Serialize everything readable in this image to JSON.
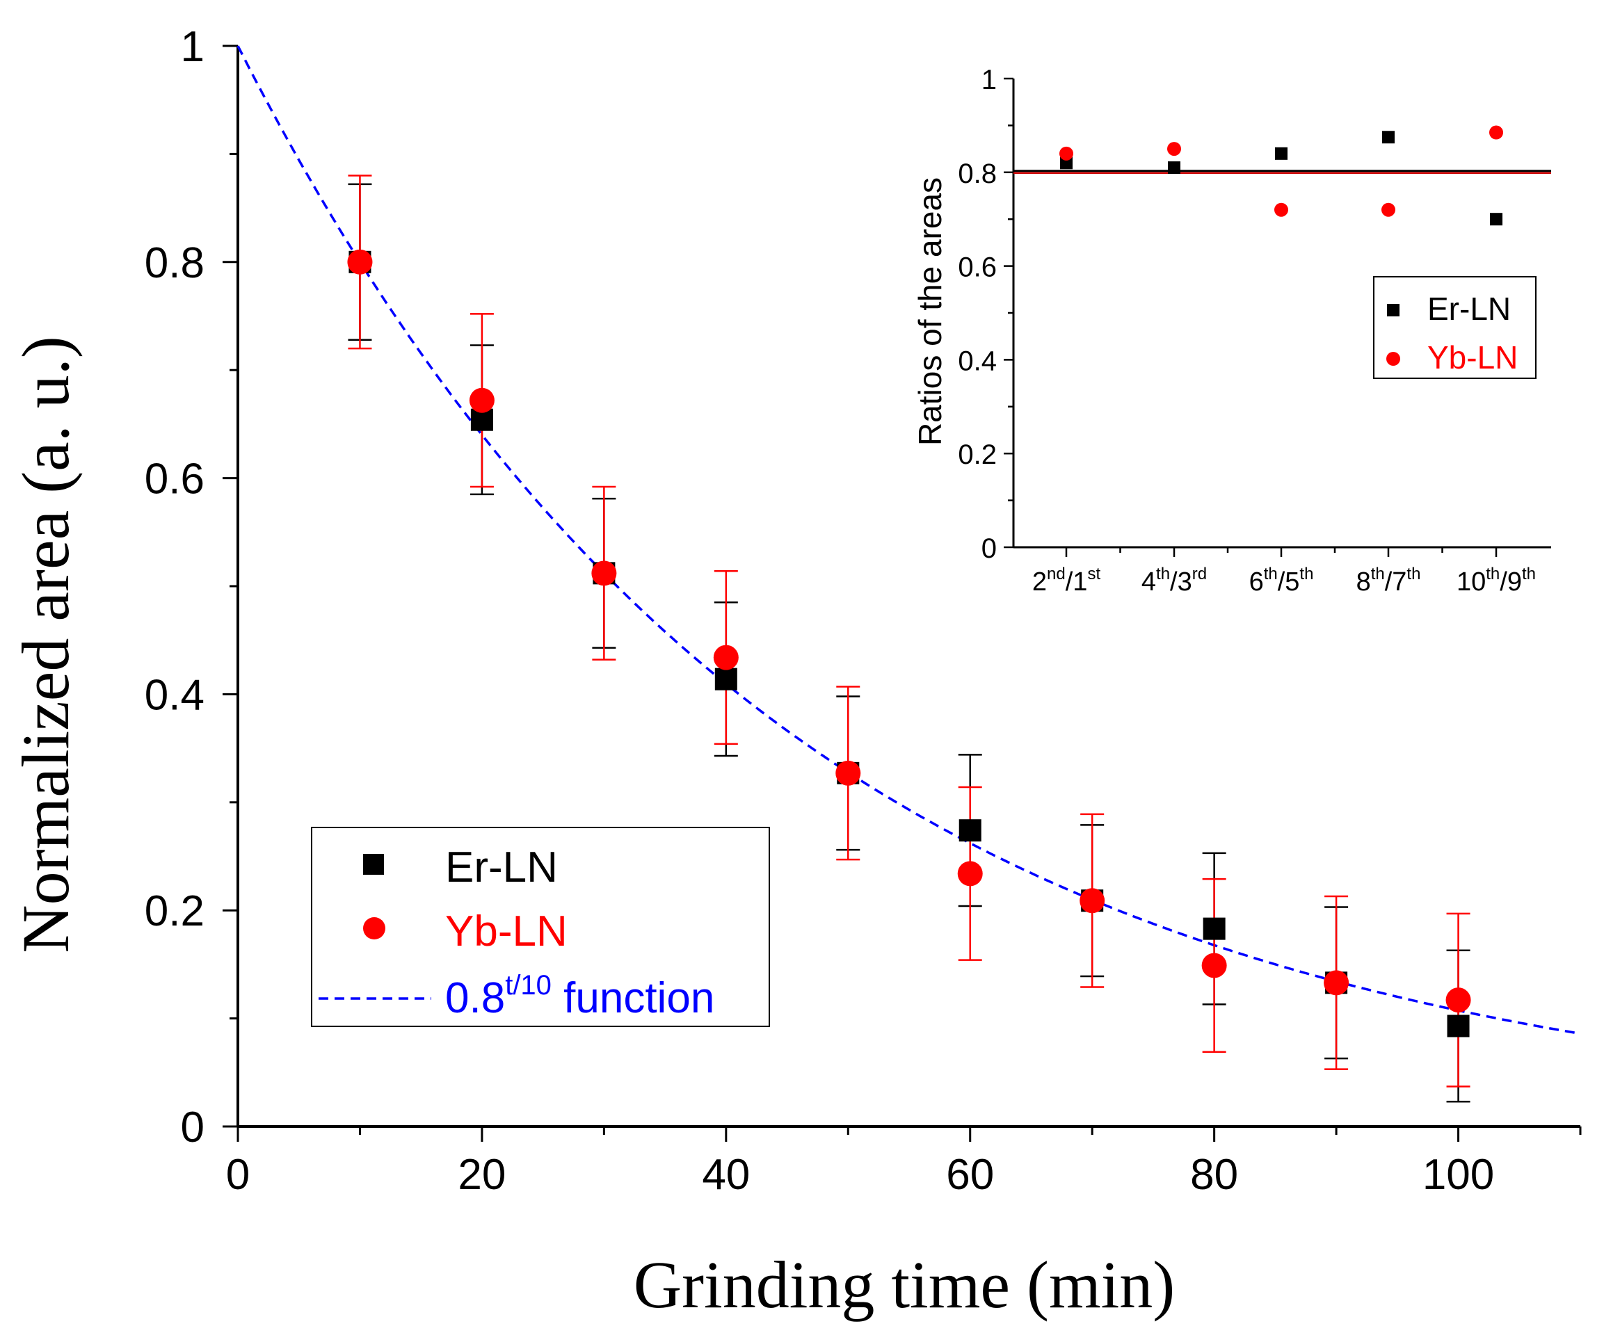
{
  "chart_data": [
    {
      "id": "main",
      "type": "scatter",
      "title": "",
      "xlabel": "Grinding time (min)",
      "ylabel": "Normalized area (a. u.)",
      "xlim": [
        0,
        110
      ],
      "ylim": [
        0,
        1
      ],
      "x_ticks": [
        0,
        20,
        40,
        60,
        80,
        100
      ],
      "y_ticks": [
        0,
        0.2,
        0.4,
        0.6,
        0.8,
        1
      ],
      "x_tick_labels": [
        "0",
        "20",
        "40",
        "60",
        "80",
        "100"
      ],
      "y_tick_labels": [
        "0",
        "0.2",
        "0.4",
        "0.6",
        "0.8",
        "1"
      ],
      "grid": false,
      "legend_position": "bottom-left",
      "series": [
        {
          "name": "Er-LN",
          "marker": "square",
          "color": "#000000",
          "x": [
            10,
            20,
            30,
            40,
            50,
            60,
            70,
            80,
            90,
            100
          ],
          "y": [
            0.8,
            0.654,
            0.512,
            0.414,
            0.327,
            0.274,
            0.209,
            0.183,
            0.133,
            0.093
          ],
          "err": [
            0.072,
            0.069,
            0.069,
            0.071,
            0.071,
            0.07,
            0.07,
            0.07,
            0.07,
            0.07
          ]
        },
        {
          "name": "Yb-LN",
          "marker": "circle",
          "color": "#ff0000",
          "x": [
            10,
            20,
            30,
            40,
            50,
            60,
            70,
            80,
            90,
            100
          ],
          "y": [
            0.8,
            0.672,
            0.512,
            0.434,
            0.327,
            0.234,
            0.209,
            0.149,
            0.133,
            0.117
          ],
          "err": [
            0.08,
            0.08,
            0.08,
            0.08,
            0.08,
            0.08,
            0.08,
            0.08,
            0.08,
            0.08
          ]
        },
        {
          "name": "0.8^(t/10) function",
          "kind": "function",
          "base": 0.8,
          "divisor": 10,
          "color": "#0000ff",
          "dash": "dashed"
        }
      ],
      "legend": {
        "er": "Er-LN",
        "yb": "Yb-LN",
        "fn_base": "0.8",
        "fn_sup": "t/10",
        "fn_suffix": " function"
      }
    },
    {
      "id": "inset",
      "type": "scatter",
      "title": "",
      "xlabel": "",
      "ylabel": "Ratios of the areas",
      "ylim": [
        0,
        1
      ],
      "y_ticks": [
        0,
        0.2,
        0.4,
        0.6,
        0.8,
        1
      ],
      "y_tick_labels": [
        "0",
        "0.2",
        "0.4",
        "0.6",
        "0.8",
        "1"
      ],
      "categories": [
        {
          "n1": "2",
          "s1": "nd",
          "n2": "/1",
          "s2": "st"
        },
        {
          "n1": "4",
          "s1": "th",
          "n2": "/3",
          "s2": "rd"
        },
        {
          "n1": "6",
          "s1": "th",
          "n2": "/5",
          "s2": "th"
        },
        {
          "n1": "8",
          "s1": "th",
          "n2": "/7",
          "s2": "th"
        },
        {
          "n1": "10",
          "s1": "th",
          "n2": "/9",
          "s2": "th"
        }
      ],
      "reference_line": 0.8,
      "grid": false,
      "legend_position": "right",
      "series": [
        {
          "name": "Er-LN",
          "marker": "square",
          "color": "#000000",
          "values": [
            0.82,
            0.81,
            0.84,
            0.875,
            0.7
          ]
        },
        {
          "name": "Yb-LN",
          "marker": "circle",
          "color": "#ff0000",
          "values": [
            0.84,
            0.85,
            0.72,
            0.72,
            0.885
          ]
        }
      ]
    }
  ]
}
